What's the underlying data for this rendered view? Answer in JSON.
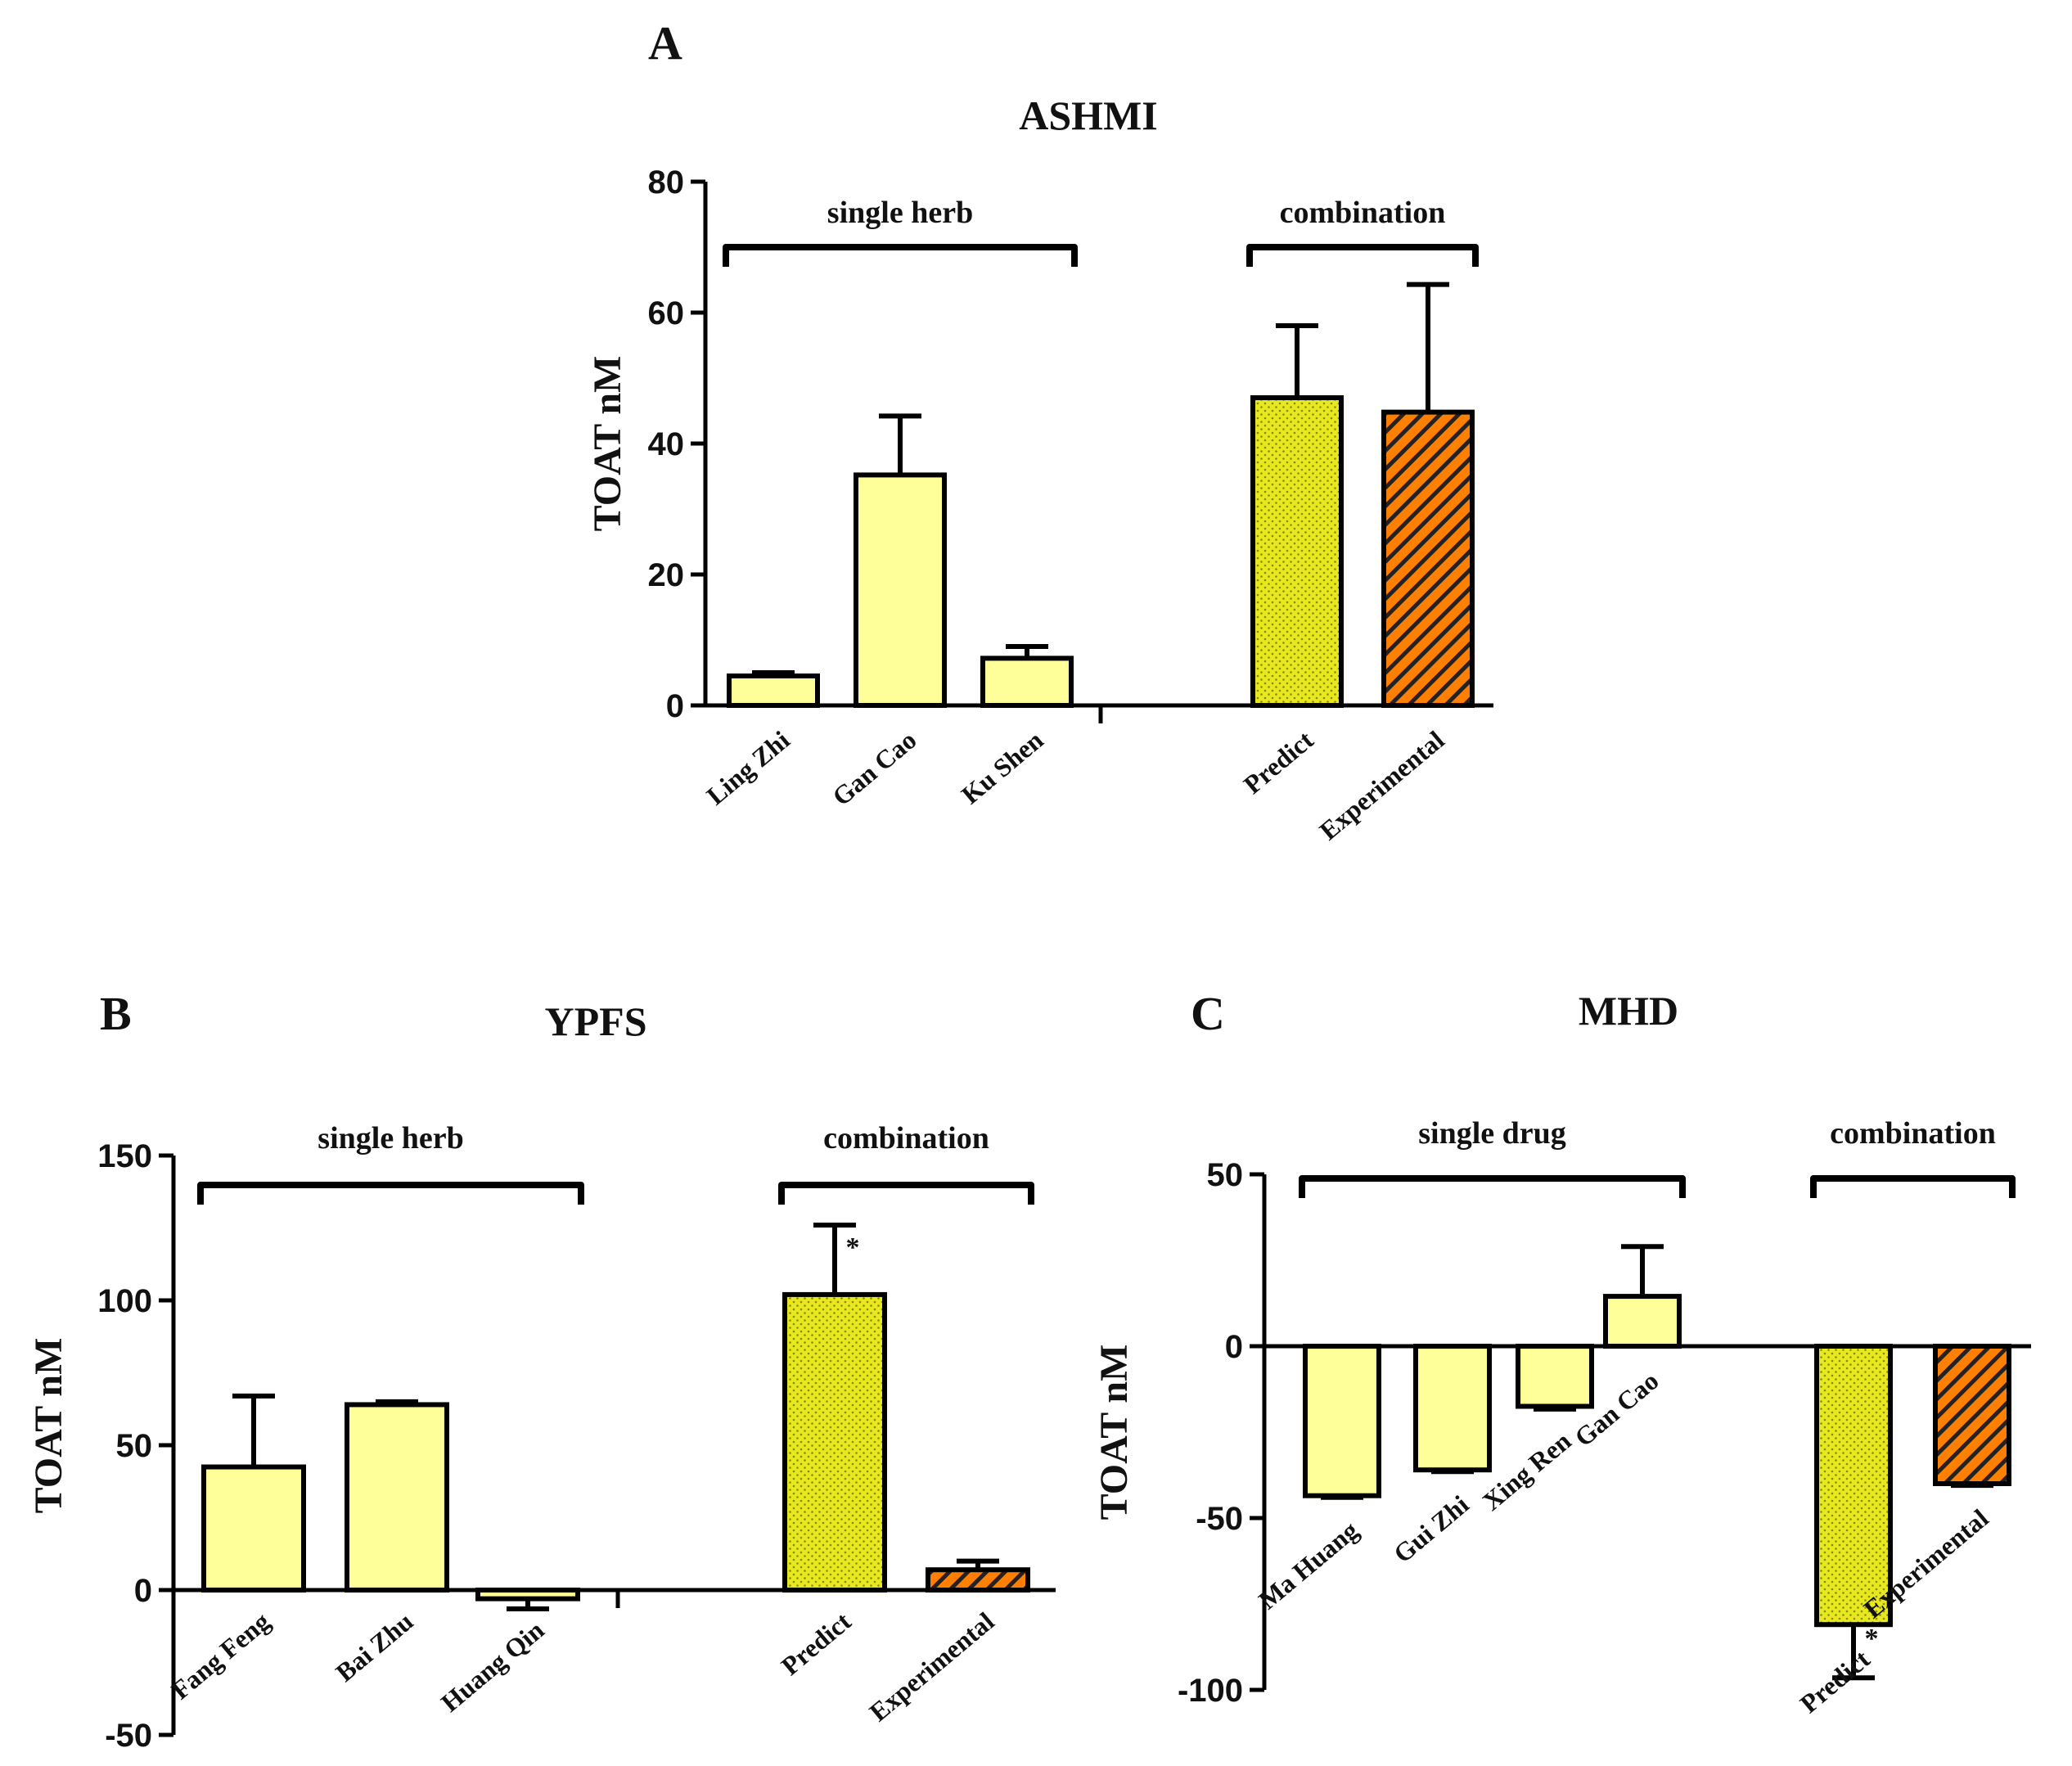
{
  "colors": {
    "single": "#ffff99",
    "predict": "#e8e820",
    "predict_dot": "#8a8a00",
    "experimental": "#ff7f00",
    "experimental_hatch": "#222222",
    "axis": "#000000"
  },
  "chart_data": [
    {
      "panel": "A",
      "type": "bar",
      "title": "ASHMI",
      "ylabel": "TOAT nM",
      "xlabel": "",
      "ylim": [
        0,
        80
      ],
      "yticks": [
        0,
        20,
        40,
        60,
        80
      ],
      "categories": [
        "Ling Zhi",
        "Gan Cao",
        "Ku Shen",
        "Predict",
        "Experimental"
      ],
      "values": [
        4.5,
        35.2,
        7.2,
        47.0,
        44.8
      ],
      "errors": [
        0.5,
        9.0,
        1.8,
        11.0,
        19.5
      ],
      "styles": [
        "single",
        "single",
        "single",
        "predict",
        "experimental"
      ],
      "significance": [
        "",
        "",
        "",
        "",
        ""
      ],
      "groups": [
        {
          "label": "single herb",
          "from": 0,
          "to": 2
        },
        {
          "label": "combination",
          "from": 3,
          "to": 4
        }
      ]
    },
    {
      "panel": "B",
      "type": "bar",
      "title": "YPFS",
      "ylabel": "TOAT nM",
      "xlabel": "",
      "ylim": [
        -50,
        150
      ],
      "yticks": [
        -50,
        0,
        50,
        100,
        150
      ],
      "categories": [
        "Fang Feng",
        "Bai Zhu",
        "Huang Qin",
        "Predict",
        "Experimental"
      ],
      "values": [
        42.5,
        64.0,
        -3.0,
        102.0,
        7.0
      ],
      "errors": [
        24.5,
        1.0,
        3.5,
        24.0,
        3.0
      ],
      "styles": [
        "single",
        "single",
        "single",
        "predict",
        "experimental"
      ],
      "significance": [
        "",
        "",
        "",
        "*",
        ""
      ],
      "groups": [
        {
          "label": "single herb",
          "from": 0,
          "to": 2
        },
        {
          "label": "combination",
          "from": 3,
          "to": 4
        }
      ]
    },
    {
      "panel": "C",
      "type": "bar",
      "title": "MHD",
      "ylabel": "TOAT nM",
      "xlabel": "",
      "ylim": [
        -100,
        50
      ],
      "yticks": [
        -100,
        -50,
        0,
        50
      ],
      "categories": [
        "Ma Huang",
        "Gui Zhi",
        "Xing Ren",
        "Gan Cao",
        "Predict",
        "Experimental"
      ],
      "values": [
        -43.5,
        -36.0,
        -17.5,
        14.5,
        -81.0,
        -40.0
      ],
      "errors": [
        0.5,
        0.5,
        0.8,
        14.5,
        15.5,
        0.5
      ],
      "styles": [
        "single",
        "single",
        "single",
        "single",
        "predict",
        "experimental"
      ],
      "significance": [
        "",
        "",
        "",
        "",
        "*",
        ""
      ],
      "groups": [
        {
          "label": "single drug",
          "from": 0,
          "to": 3
        },
        {
          "label": "combination",
          "from": 4,
          "to": 5
        }
      ]
    }
  ]
}
